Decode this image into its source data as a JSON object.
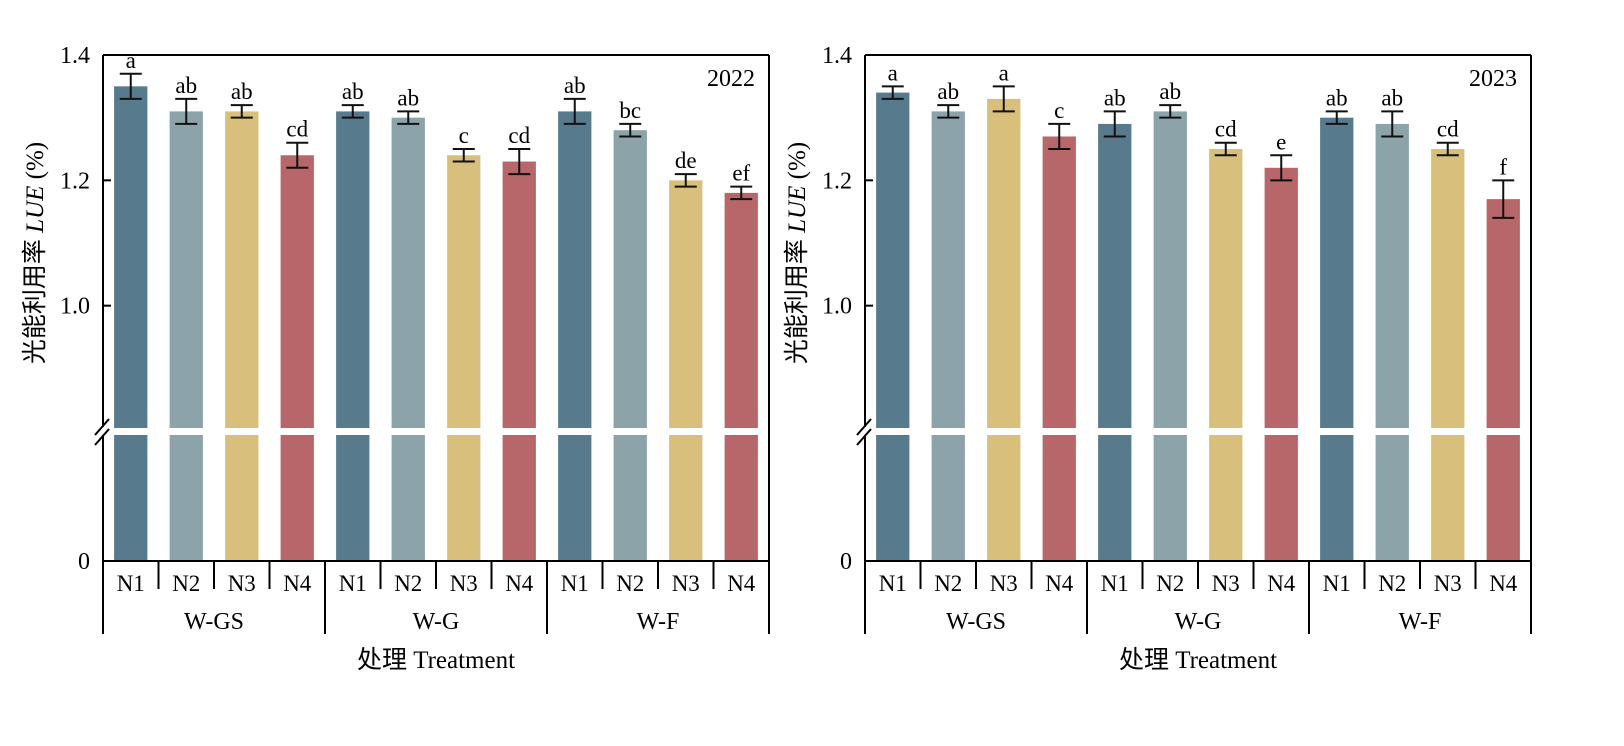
{
  "chart_data": [
    {
      "type": "bar",
      "panel_label": "2022",
      "ylabel_cn": "光能利用率",
      "ylabel_en": "LUE",
      "ylabel_unit": "(%)",
      "xlabel_cn": "处理",
      "xlabel_en": "Treatment",
      "ylim": [
        0,
        1.4
      ],
      "axis_break": [
        0,
        0.8
      ],
      "yticks": [
        "0",
        "1.0",
        "1.2",
        "1.4"
      ],
      "groups": [
        "W-GS",
        "W-G",
        "W-F"
      ],
      "categories": [
        "N1",
        "N2",
        "N3",
        "N4",
        "N1",
        "N2",
        "N3",
        "N4",
        "N1",
        "N2",
        "N3",
        "N4"
      ],
      "values": [
        1.35,
        1.31,
        1.31,
        1.24,
        1.31,
        1.3,
        1.24,
        1.23,
        1.31,
        1.28,
        1.2,
        1.18
      ],
      "errors": [
        0.02,
        0.02,
        0.01,
        0.02,
        0.01,
        0.01,
        0.01,
        0.02,
        0.02,
        0.01,
        0.01,
        0.01
      ],
      "letters": [
        "a",
        "ab",
        "ab",
        "cd",
        "ab",
        "ab",
        "c",
        "cd",
        "ab",
        "bc",
        "de",
        "ef"
      ],
      "grid": false
    },
    {
      "type": "bar",
      "panel_label": "2023",
      "ylabel_cn": "光能利用率",
      "ylabel_en": "LUE",
      "ylabel_unit": "(%)",
      "xlabel_cn": "处理",
      "xlabel_en": "Treatment",
      "ylim": [
        0,
        1.4
      ],
      "axis_break": [
        0,
        0.8
      ],
      "yticks": [
        "0",
        "1.0",
        "1.2",
        "1.4"
      ],
      "groups": [
        "W-GS",
        "W-G",
        "W-F"
      ],
      "categories": [
        "N1",
        "N2",
        "N3",
        "N4",
        "N1",
        "N2",
        "N3",
        "N4",
        "N1",
        "N2",
        "N3",
        "N4"
      ],
      "values": [
        1.34,
        1.31,
        1.33,
        1.27,
        1.29,
        1.31,
        1.25,
        1.22,
        1.3,
        1.29,
        1.25,
        1.17
      ],
      "errors": [
        0.01,
        0.01,
        0.02,
        0.02,
        0.02,
        0.01,
        0.01,
        0.02,
        0.01,
        0.02,
        0.01,
        0.03
      ],
      "letters": [
        "a",
        "ab",
        "a",
        "c",
        "ab",
        "ab",
        "cd",
        "e",
        "ab",
        "ab",
        "cd",
        "f"
      ],
      "grid": false
    }
  ],
  "colors": {
    "N1": "#577b8d",
    "N2": "#8ca4a9",
    "N3": "#d8c07c",
    "N4": "#b7666a"
  }
}
